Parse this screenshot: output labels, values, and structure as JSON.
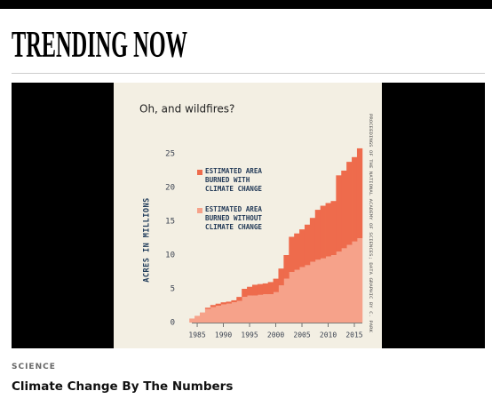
{
  "header": {
    "title": "TRENDING NOW"
  },
  "chart_data": {
    "type": "stacked-step-area",
    "title": "Oh, and wildfires?",
    "y_label": "ACRES IN MILLIONS",
    "source": "PROCEEDINGS OF THE NATIONAL ACADEMY OF SCIENCES; DATA GRAPHIC BY C. PARK",
    "x": [
      1984,
      1985,
      1986,
      1987,
      1988,
      1989,
      1990,
      1991,
      1992,
      1993,
      1994,
      1995,
      1996,
      1997,
      1998,
      1999,
      2000,
      2001,
      2002,
      2003,
      2004,
      2005,
      2006,
      2007,
      2008,
      2009,
      2010,
      2011,
      2012,
      2013,
      2014,
      2015,
      2016
    ],
    "series": [
      {
        "name": "ESTIMATED AREA BURNED WITHOUT CLIMATE CHANGE",
        "color": "#f6a28a",
        "values": [
          0.6,
          1.0,
          1.5,
          2.0,
          2.3,
          2.5,
          2.7,
          2.8,
          3.0,
          3.2,
          3.8,
          4.0,
          4.0,
          4.1,
          4.2,
          4.2,
          4.5,
          5.5,
          6.5,
          7.5,
          7.8,
          8.2,
          8.5,
          9.0,
          9.3,
          9.5,
          9.8,
          10.0,
          10.5,
          11.0,
          11.5,
          12.0,
          12.5
        ]
      },
      {
        "name": "ESTIMATED AREA BURNED WITH CLIMATE CHANGE",
        "color": "#ee6b4c",
        "values": [
          0,
          0,
          0,
          0.2,
          0.3,
          0.3,
          0.3,
          0.3,
          0.3,
          0.6,
          1.2,
          1.3,
          1.6,
          1.6,
          1.6,
          1.8,
          2.0,
          2.5,
          3.5,
          5.2,
          5.4,
          5.6,
          6.0,
          6.5,
          7.4,
          7.8,
          7.9,
          8.0,
          11.3,
          11.5,
          12.3,
          12.5,
          13.3
        ]
      }
    ],
    "xlim": [
      1983.5,
      2017
    ],
    "xticks": [
      1985,
      1990,
      1995,
      2000,
      2005,
      2010,
      2015
    ],
    "ylim": [
      0,
      27
    ],
    "yticks": [
      0,
      5,
      10,
      15,
      20,
      25
    ],
    "background": "#f3efe3"
  },
  "caption": {
    "section": "SCIENCE",
    "headline": "Climate Change By The Numbers"
  }
}
